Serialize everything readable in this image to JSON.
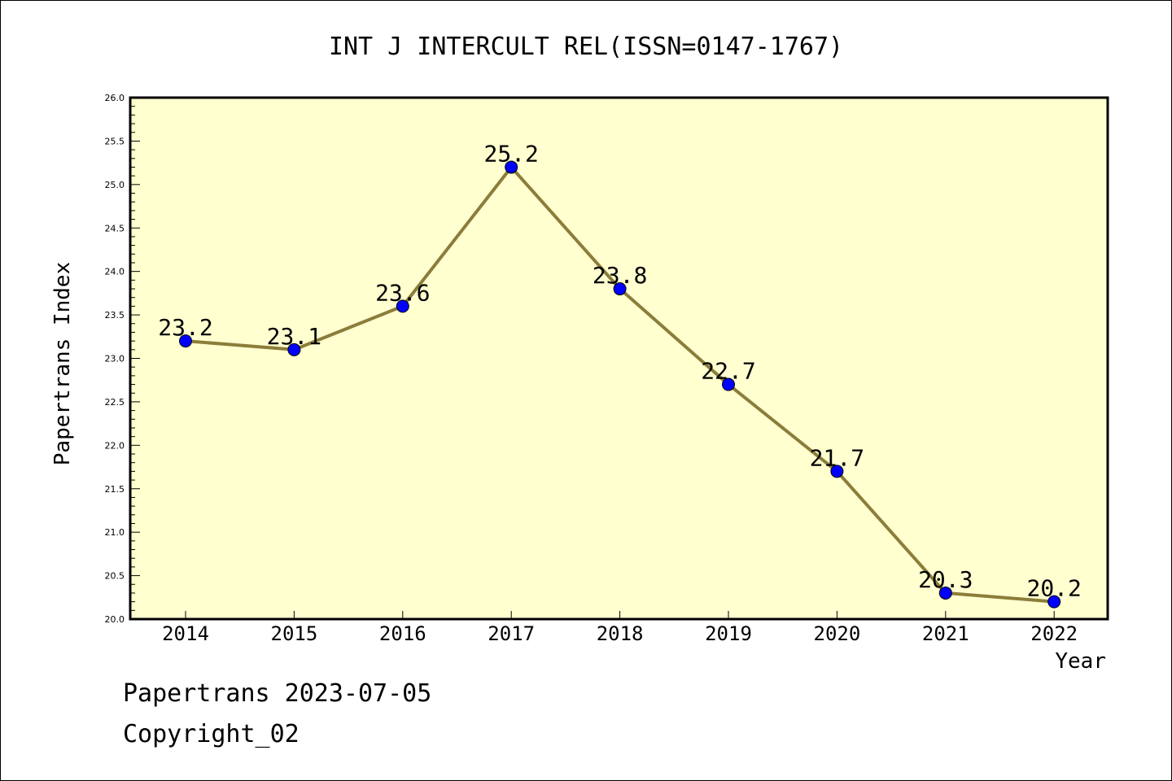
{
  "chart_data": {
    "type": "line",
    "title": "INT J INTERCULT REL(ISSN=0147-1767)",
    "xlabel": "Year",
    "ylabel": "Papertrans Index",
    "categories": [
      "2014",
      "2015",
      "2016",
      "2017",
      "2018",
      "2019",
      "2020",
      "2021",
      "2022"
    ],
    "series": [
      {
        "values": [
          23.2,
          23.1,
          23.6,
          25.2,
          23.8,
          22.7,
          21.7,
          20.3,
          20.2
        ],
        "labels": [
          "23.2",
          "23.1",
          "23.6",
          "25.2",
          "23.8",
          "22.7",
          "21.7",
          "20.3",
          "20.2"
        ]
      }
    ],
    "ylim": [
      20.0,
      26.0
    ],
    "yticks": [
      "20.0",
      "20.5",
      "21.0",
      "21.5",
      "22.0",
      "22.5",
      "23.0",
      "23.5",
      "24.0",
      "24.5",
      "25.0",
      "25.5",
      "26.0"
    ],
    "grid": false,
    "colors": {
      "plot_background": "#ffffd0",
      "line": "#8b7d3a",
      "marker": "#0000ff"
    }
  },
  "footer": {
    "line1": "Papertrans 2023-07-05",
    "line2": "Copyright_02"
  }
}
